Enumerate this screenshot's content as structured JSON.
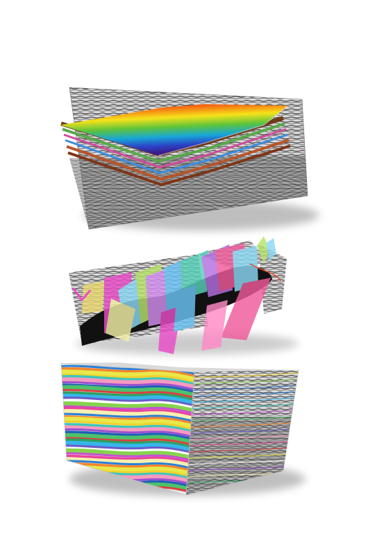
{
  "figure": {
    "panels": [
      {
        "id": "panel-1",
        "subject": "seismic-horizon-surface",
        "surface_palette": [
          "#e8150f",
          "#f57b12",
          "#f6e21a",
          "#5fc43a",
          "#18a7d6",
          "#2a46c8",
          "#3a1a8a"
        ]
      },
      {
        "id": "panel-2",
        "subject": "fault-planes-network",
        "fault_colors": [
          "#e94cc8",
          "#8ad7f2",
          "#b7e36a",
          "#d38ef0",
          "#f05a9a",
          "#6ac3f5",
          "#f4f1a6",
          "#b46ee0",
          "#56d0b8",
          "#ff8ac6"
        ]
      },
      {
        "id": "panel-3",
        "subject": "stratigraphic-volume-block",
        "layer_colors": [
          "#2b7fd6",
          "#ffffff",
          "#4cc26a",
          "#f2d12c",
          "#e9439c",
          "#35b7e9",
          "#9a50d0",
          "#f3862d",
          "#86d34c",
          "#d94242",
          "#3ec6b9",
          "#f6f0b0",
          "#6a5cc9",
          "#1f5fb8",
          "#e8e84a",
          "#c64fd3",
          "#2fa05f",
          "#f79ac0"
        ]
      }
    ]
  }
}
